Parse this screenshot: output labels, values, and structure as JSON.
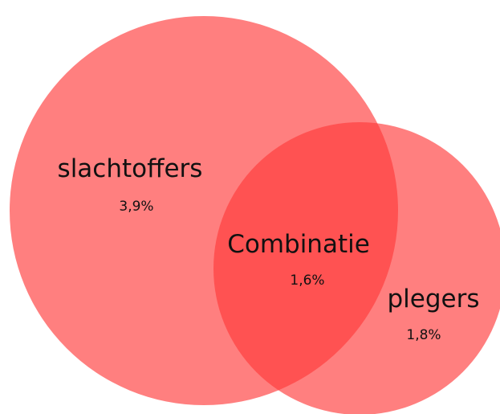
{
  "chart_data": {
    "type": "venn",
    "sets": [
      {
        "name": "slachtoffers",
        "value": 3.9,
        "value_label": "3,9%",
        "color": "#ff3b3b"
      },
      {
        "name": "plegers",
        "value": 1.8,
        "value_label": "1,8%",
        "color": "#ff3b3b"
      }
    ],
    "intersection": {
      "name": "Combinatie",
      "value": 1.6,
      "value_label": "1,6%"
    }
  }
}
